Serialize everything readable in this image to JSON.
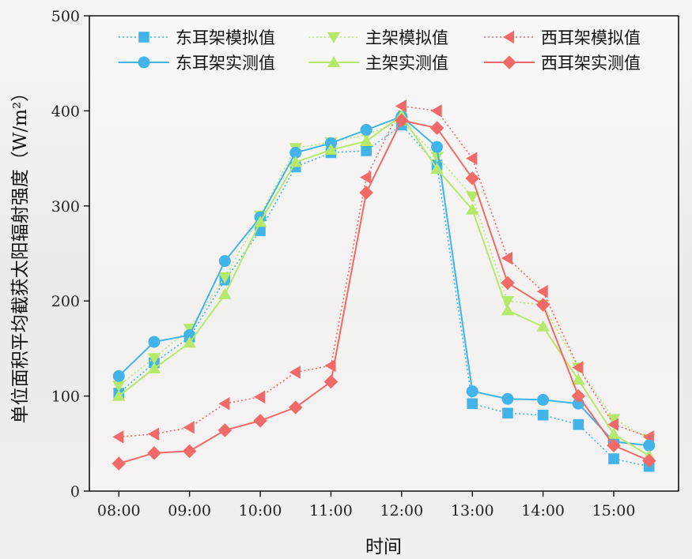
{
  "chart_data": {
    "type": "line",
    "title": "",
    "xlabel": "时间",
    "ylabel": "单位面积平均截获太阳辐射强度（W/m²）",
    "ylim": [
      0,
      500
    ],
    "yticks": [
      0,
      100,
      200,
      300,
      400,
      500
    ],
    "xlim": [
      "07:35",
      "15:55"
    ],
    "xticks": [
      "08:00",
      "09:00",
      "10:00",
      "11:00",
      "12:00",
      "13:00",
      "14:00",
      "15:00"
    ],
    "x": [
      "08:00",
      "08:30",
      "09:00",
      "09:30",
      "10:00",
      "10:30",
      "11:00",
      "11:30",
      "12:00",
      "12:30",
      "13:00",
      "13:30",
      "14:00",
      "14:30",
      "15:00",
      "15:30"
    ],
    "grid": false,
    "legend_position": "top",
    "series": [
      {
        "name": "东耳架模拟值",
        "color": "#43b4ea",
        "line": "dotted",
        "marker": "square",
        "values": [
          103,
          135,
          162,
          222,
          274,
          341,
          356,
          358,
          385,
          343,
          92,
          82,
          80,
          70,
          34,
          26
        ]
      },
      {
        "name": "主架模拟值",
        "color": "#b6e86c",
        "line": "dotted",
        "marker": "triangle-down",
        "values": [
          111,
          140,
          171,
          225,
          290,
          361,
          367,
          375,
          389,
          352,
          310,
          200,
          196,
          130,
          76,
          55
        ]
      },
      {
        "name": "西耳架模拟值",
        "color": "#f06a6a",
        "line": "dotted",
        "marker": "triangle-left",
        "values": [
          57,
          60,
          67,
          92,
          99,
          125,
          132,
          330,
          405,
          400,
          350,
          245,
          210,
          130,
          70,
          57
        ]
      },
      {
        "name": "东耳架实测值",
        "color": "#43b4ea",
        "line": "solid",
        "marker": "circle",
        "values": [
          121,
          157,
          164,
          242,
          288,
          356,
          366,
          380,
          394,
          362,
          105,
          97,
          96,
          92,
          52,
          48
        ]
      },
      {
        "name": "主架实测值",
        "color": "#b6e86c",
        "line": "solid",
        "marker": "triangle-up",
        "values": [
          100,
          129,
          156,
          207,
          283,
          346,
          359,
          368,
          395,
          339,
          296,
          190,
          173,
          117,
          60,
          37
        ]
      },
      {
        "name": "西耳架实测值",
        "color": "#f06a6a",
        "line": "solid",
        "marker": "diamond",
        "values": [
          29,
          40,
          42,
          64,
          74,
          88,
          115,
          314,
          390,
          382,
          329,
          219,
          196,
          100,
          48,
          32
        ]
      }
    ]
  }
}
